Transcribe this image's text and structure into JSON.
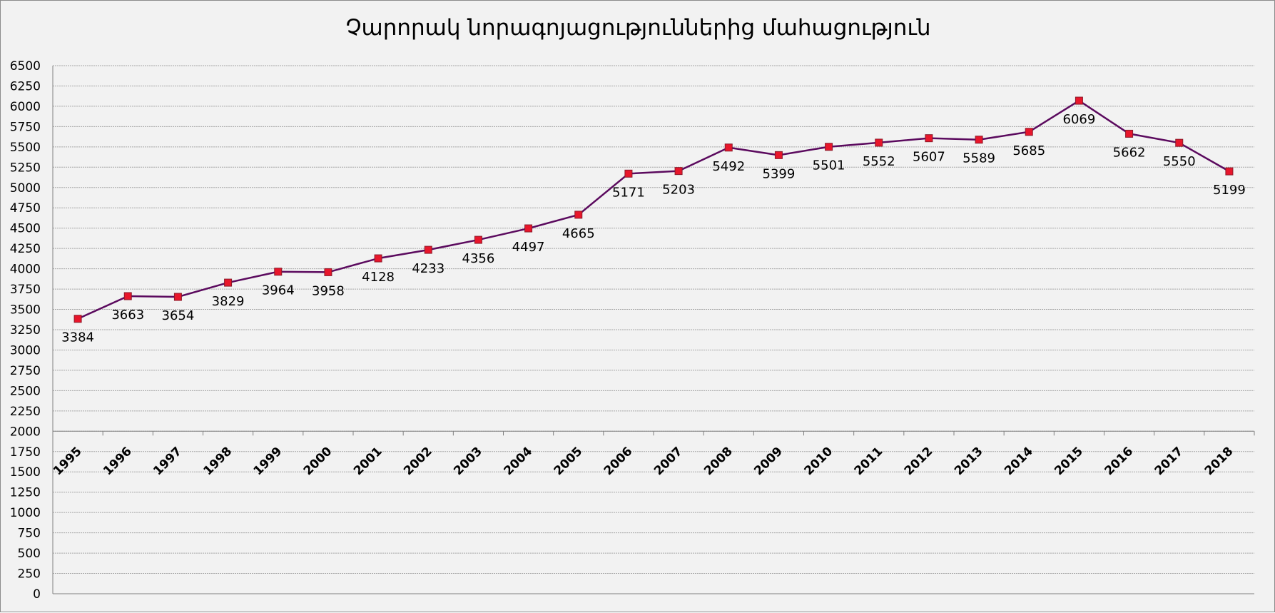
{
  "chart_data": {
    "type": "line",
    "title": "Չարորակ նորագոյացություններից մահացություն",
    "xlabel": "",
    "ylabel": "",
    "categories": [
      "1995",
      "1996",
      "1997",
      "1998",
      "1999",
      "2000",
      "2001",
      "2002",
      "2003",
      "2004",
      "2005",
      "2006",
      "2007",
      "2008",
      "2009",
      "2010",
      "2011",
      "2012",
      "2013",
      "2014",
      "2015",
      "2016",
      "2017",
      "2018"
    ],
    "series": [
      {
        "values": [
          3384,
          3663,
          3654,
          3829,
          3964,
          3958,
          4128,
          4233,
          4356,
          4497,
          4665,
          5171,
          5203,
          5492,
          5399,
          5501,
          5552,
          5607,
          5589,
          5685,
          6069,
          5662,
          5550,
          5199
        ]
      }
    ],
    "ylim": [
      0,
      6500
    ],
    "ytick_step": 250,
    "yticks": [
      "0",
      "250",
      "500",
      "750",
      "1000",
      "1250",
      "1500",
      "1750",
      "2000",
      "2250",
      "2500",
      "2750",
      "3000",
      "3250",
      "3500",
      "3750",
      "4000",
      "4250",
      "4500",
      "4750",
      "5000",
      "5250",
      "5500",
      "5750",
      "6000",
      "6250",
      "6500"
    ],
    "grid": true,
    "legend": "none",
    "data_labels": true,
    "colors": {
      "line": "#5b0a5e",
      "marker": "#e8162b",
      "marker_edge": "#8a1a2a",
      "grid": "#a6a6a6",
      "background": "#f2f2f2"
    }
  }
}
